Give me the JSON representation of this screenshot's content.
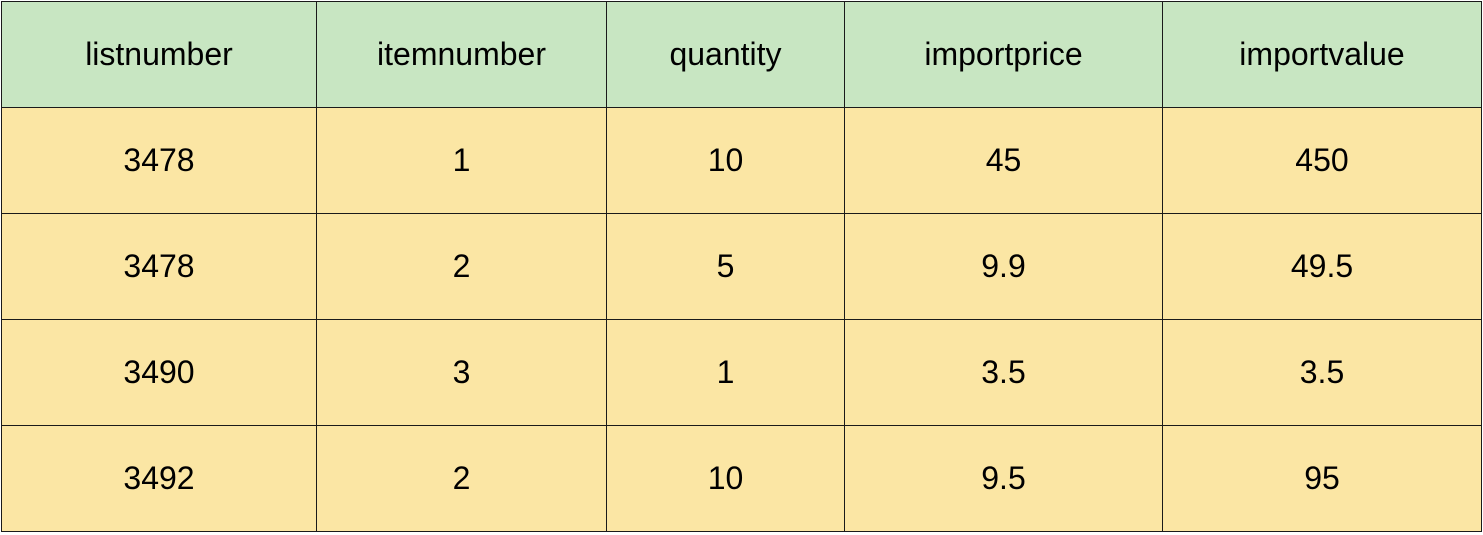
{
  "table": {
    "columns": [
      "listnumber",
      "itemnumber",
      "quantity",
      "importprice",
      "importvalue"
    ],
    "rows": [
      [
        "3478",
        "1",
        "10",
        "45",
        "450"
      ],
      [
        "3478",
        "2",
        "5",
        "9.9",
        "49.5"
      ],
      [
        "3490",
        "3",
        "1",
        "3.5",
        "3.5"
      ],
      [
        "3492",
        "2",
        "10",
        "9.5",
        "95"
      ]
    ]
  },
  "colors": {
    "header_bg": "#c8e6c2",
    "cell_bg": "#fbe6a4",
    "border": "#1a1a1a"
  }
}
